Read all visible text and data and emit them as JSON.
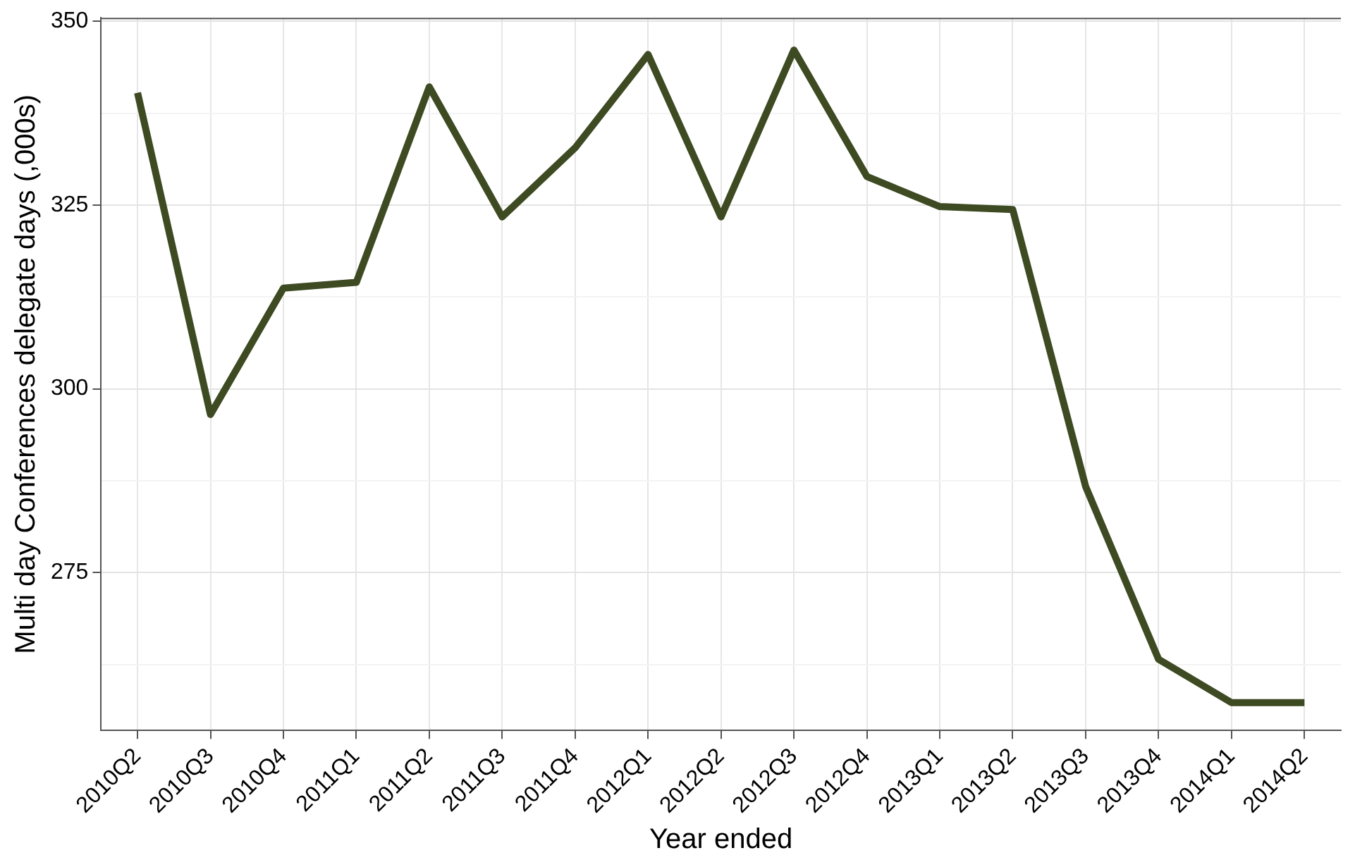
{
  "chart_data": {
    "type": "line",
    "xlabel": "Year ended",
    "ylabel": "Multi day Conferences delegate days (,000s)",
    "categories": [
      "2010Q2",
      "2010Q3",
      "2010Q4",
      "2011Q1",
      "2011Q2",
      "2011Q3",
      "2011Q4",
      "2012Q1",
      "2012Q2",
      "2012Q3",
      "2012Q4",
      "2013Q1",
      "2013Q2",
      "2013Q3",
      "2013Q4",
      "2014Q1",
      "2014Q2"
    ],
    "series": [
      {
        "color": "#3d4a22",
        "values": [
          340.3,
          296.5,
          313.7,
          314.5,
          341.1,
          323.4,
          332.8,
          345.5,
          323.4,
          346.1,
          328.9,
          324.8,
          324.4,
          286.7,
          263.2,
          257.3,
          257.3
        ]
      }
    ],
    "ylim": [
      253.5,
      350.5
    ],
    "yticks": [
      {
        "value": 262.5,
        "label": null
      },
      275,
      {
        "value": 287.5,
        "label": null
      },
      300,
      {
        "value": 312.5,
        "label": null
      },
      325,
      {
        "value": 337.5,
        "label": null
      },
      350
    ],
    "grid": true,
    "legend": false,
    "marker": "none",
    "line_style": "solid"
  }
}
